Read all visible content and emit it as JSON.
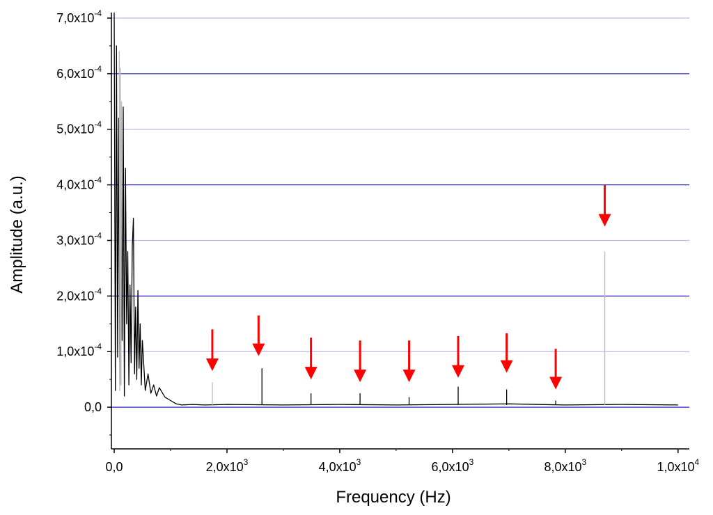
{
  "chart_data": {
    "type": "line",
    "title": "",
    "xlabel": "Frequency (Hz)",
    "ylabel": "Amplitude (a.u.)",
    "xlim": [
      -50,
      10200
    ],
    "ylim": [
      -7.5e-05,
      0.00071
    ],
    "x_ticks": [
      {
        "value": 0,
        "mantissa": "0,0",
        "exp": ""
      },
      {
        "value": 2000,
        "mantissa": "2,0x10",
        "exp": "3"
      },
      {
        "value": 4000,
        "mantissa": "4,0x10",
        "exp": "3"
      },
      {
        "value": 6000,
        "mantissa": "6,0x10",
        "exp": "3"
      },
      {
        "value": 8000,
        "mantissa": "8,0x10",
        "exp": "3"
      },
      {
        "value": 10000,
        "mantissa": "1,0x10",
        "exp": "4"
      }
    ],
    "y_ticks": [
      {
        "value": 0,
        "mantissa": "0,0",
        "exp": ""
      },
      {
        "value": 0.0001,
        "mantissa": "1,0x10",
        "exp": "-4"
      },
      {
        "value": 0.0002,
        "mantissa": "2,0x10",
        "exp": "-4"
      },
      {
        "value": 0.0003,
        "mantissa": "3,0x10",
        "exp": "-4"
      },
      {
        "value": 0.0004,
        "mantissa": "4,0x10",
        "exp": "-4"
      },
      {
        "value": 0.0005,
        "mantissa": "5,0x10",
        "exp": "-4"
      },
      {
        "value": 0.0006,
        "mantissa": "6,0x10",
        "exp": "-4"
      },
      {
        "value": 0.0007,
        "mantissa": "7,0x10",
        "exp": "-4"
      }
    ],
    "grid": "horizontal",
    "colors": {
      "grid_major": "#2323c8",
      "grid_minor": "#b8b8ec",
      "arrow": "#ff0000",
      "series_main": "#000000",
      "series_peaks": "#bbbbbb"
    },
    "series": [
      {
        "style": "black",
        "points": [
          [
            0,
            0.00071
          ],
          [
            20,
            3e-05
          ],
          [
            40,
            0.00065
          ],
          [
            60,
            9e-05
          ],
          [
            80,
            0.00052
          ],
          [
            100,
            4e-05
          ],
          [
            120,
            0.00048
          ],
          [
            140,
            0.00012
          ],
          [
            160,
            0.00054
          ],
          [
            180,
            2e-05
          ],
          [
            200,
            0.00043
          ],
          [
            220,
            0.00015
          ],
          [
            240,
            0.00028
          ],
          [
            260,
            4e-05
          ],
          [
            280,
            0.00022
          ],
          [
            300,
            8e-05
          ],
          [
            320,
            0.00029
          ],
          [
            340,
            0.00034
          ],
          [
            360,
            6e-05
          ],
          [
            380,
            0.00018
          ],
          [
            400,
            5e-05
          ],
          [
            420,
            0.00021
          ],
          [
            440,
            7e-05
          ],
          [
            460,
            0.00015
          ],
          [
            480,
            4e-05
          ],
          [
            500,
            0.00012
          ],
          [
            550,
            3e-05
          ],
          [
            600,
            6e-05
          ],
          [
            650,
            2.5e-05
          ],
          [
            700,
            4e-05
          ],
          [
            750,
            2e-05
          ],
          [
            800,
            3.5e-05
          ],
          [
            900,
            1.8e-05
          ],
          [
            1000,
            1.2e-05
          ],
          [
            1100,
            6e-06
          ],
          [
            1200,
            4e-06
          ],
          [
            1400,
            5e-06
          ],
          [
            1600,
            4e-06
          ],
          [
            2000,
            5e-06
          ],
          [
            3000,
            4e-06
          ],
          [
            4000,
            5e-06
          ],
          [
            5000,
            4e-06
          ],
          [
            6000,
            5e-06
          ],
          [
            7000,
            6e-06
          ],
          [
            8000,
            4e-06
          ],
          [
            9000,
            5e-06
          ],
          [
            10000,
            4e-06
          ]
        ]
      },
      {
        "style": "gray",
        "points": [
          [
            90,
            0.00064
          ],
          [
            100,
            3e-05
          ],
          [
            110,
            0.00061
          ],
          [
            120,
            4e-05
          ],
          [
            130,
            0.00055
          ]
        ]
      }
    ],
    "peaks": [
      {
        "x": 1740,
        "y": 4.5e-05,
        "style": "gray"
      },
      {
        "x": 2620,
        "y": 7e-05,
        "style": "black"
      },
      {
        "x": 3490,
        "y": 2.5e-05,
        "style": "black"
      },
      {
        "x": 4360,
        "y": 2.5e-05,
        "style": "black"
      },
      {
        "x": 5230,
        "y": 1.8e-05,
        "style": "black"
      },
      {
        "x": 6100,
        "y": 3.7e-05,
        "style": "black"
      },
      {
        "x": 6960,
        "y": 3.2e-05,
        "style": "black"
      },
      {
        "x": 7830,
        "y": 1.2e-05,
        "style": "black"
      },
      {
        "x": 8700,
        "y": 0.00028,
        "style": "gray"
      }
    ],
    "arrows": [
      {
        "x": 1740,
        "y_top": 0.00014,
        "y_bottom": 6.5e-05
      },
      {
        "x": 2560,
        "y_top": 0.000165,
        "y_bottom": 9.2e-05
      },
      {
        "x": 3490,
        "y_top": 0.000125,
        "y_bottom": 5e-05
      },
      {
        "x": 4360,
        "y_top": 0.00012,
        "y_bottom": 4.5e-05
      },
      {
        "x": 5230,
        "y_top": 0.00012,
        "y_bottom": 4.5e-05
      },
      {
        "x": 6100,
        "y_top": 0.000128,
        "y_bottom": 5.3e-05
      },
      {
        "x": 6960,
        "y_top": 0.000133,
        "y_bottom": 6.2e-05
      },
      {
        "x": 7830,
        "y_top": 0.000105,
        "y_bottom": 3.2e-05
      },
      {
        "x": 8700,
        "y_top": 0.0004,
        "y_bottom": 0.000325
      }
    ]
  }
}
